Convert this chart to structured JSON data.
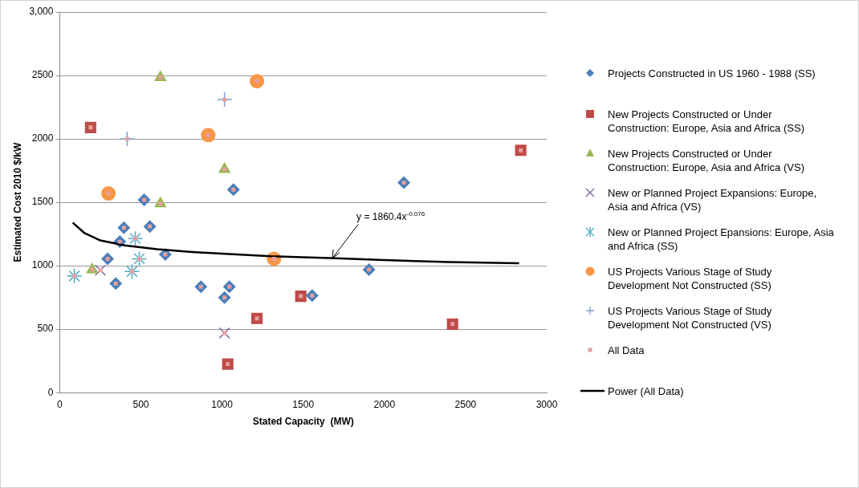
{
  "chart_data": {
    "type": "scatter",
    "xlabel": "Stated Capacity  (MW)",
    "ylabel": "Estimated Cost 2010 $/kW",
    "xlim": [
      0,
      3000
    ],
    "xticks": [
      0,
      500,
      1000,
      1500,
      2000,
      2500,
      3000
    ],
    "ylim": [
      0,
      3000
    ],
    "yticks": [
      0,
      500,
      1000,
      1500,
      2000,
      2500,
      {
        "value": 3000,
        "label": "3,000"
      }
    ],
    "grid": "y",
    "legend": "right",
    "series": [
      {
        "name": "Projects Constructed in US 1960 - 1988 (SS)",
        "color": "#4a7ebb",
        "marker": "diamond",
        "x": [
          520,
          1070,
          395,
          555,
          370,
          295,
          650,
          345,
          870,
          1045,
          1015,
          2120,
          1905,
          1555
        ],
        "values": [
          1520,
          1600,
          1300,
          1310,
          1190,
          1055,
          1090,
          860,
          835,
          835,
          750,
          1655,
          970,
          765
        ]
      },
      {
        "name": "New Projects Constructed or Under Construction: Europe, Asia and Africa (SS)",
        "color": "#be4b48",
        "marker": "square",
        "x": [
          190,
          2840,
          2420,
          1485,
          1215,
          1035
        ],
        "values": [
          2090,
          1910,
          540,
          760,
          585,
          225
        ]
      },
      {
        "name": "New Projects Constructed or Under Construction: Europe, Asia and Africa (VS)",
        "color": "#98b954",
        "marker": "triangle",
        "x": [
          620,
          1015,
          620,
          200
        ],
        "values": [
          2485,
          1760,
          1490,
          970
        ]
      },
      {
        "name": "New or Planned Project Expansions:  Europe, Asia and Africa (VS)",
        "color": "#7d60a0",
        "marker": "x",
        "x": [
          1015,
          250
        ],
        "values": [
          470,
          965
        ]
      },
      {
        "name": "New or Planned Project Epansions:  Europe, Asia and Africa (SS)",
        "color": "#4bacc6",
        "marker": "cross",
        "x": [
          90,
          445,
          490,
          465
        ],
        "values": [
          920,
          955,
          1055,
          1215
        ]
      },
      {
        "name": "US Projects Various Stage of Study Development Not Constructed  (SS)",
        "color": "#f79646",
        "marker": "circle",
        "x": [
          1215,
          915,
          300,
          1320
        ],
        "values": [
          2455,
          2030,
          1570,
          1055
        ]
      },
      {
        "name": "US Projects Various Stage of Study Development Not Constructed  (VS)",
        "color": "#7f9fd0",
        "marker": "plus",
        "x": [
          1015,
          415
        ],
        "values": [
          2310,
          2000
        ]
      },
      {
        "name": "All Data",
        "color": "#e6a0a0",
        "marker": "square",
        "x": [
          520,
          1070,
          395,
          555,
          370,
          295,
          650,
          345,
          870,
          1045,
          1015,
          2120,
          1905,
          1555,
          190,
          2840,
          2420,
          1485,
          1215,
          1035,
          620,
          1015,
          620,
          200,
          1015,
          250,
          90,
          445,
          490,
          465,
          1215,
          915,
          300,
          1320,
          1015,
          415
        ],
        "values": [
          1520,
          1600,
          1300,
          1310,
          1190,
          1055,
          1090,
          860,
          835,
          835,
          750,
          1655,
          970,
          765,
          2090,
          1910,
          540,
          760,
          585,
          225,
          2485,
          1760,
          1490,
          970,
          470,
          965,
          920,
          955,
          1055,
          1215,
          2455,
          2030,
          1570,
          1055,
          2310,
          2000
        ]
      },
      {
        "name": "Power (All Data)",
        "type": "line",
        "color": "#000000",
        "marker": "none",
        "x": [
          80,
          150,
          250,
          400,
          600,
          800,
          1000,
          1300,
          1700,
          2000,
          2400,
          2830
        ],
        "values": [
          1340,
          1260,
          1200,
          1160,
          1130,
          1110,
          1095,
          1075,
          1060,
          1045,
          1030,
          1020
        ]
      }
    ],
    "annotations": [
      {
        "text": "y = 1860.4x$^{-0.076}$",
        "x": 1680,
        "y": 1060
      }
    ]
  }
}
